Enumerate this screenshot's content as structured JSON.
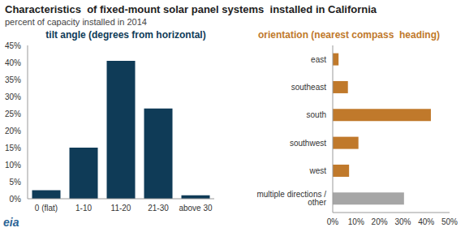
{
  "title": "Characteristics  of fixed-mount solar panel systems  installed in California",
  "subtitle": "percent of capacity installed in 2014",
  "logo": "eia",
  "chart_data": [
    {
      "type": "bar",
      "title": "tilt angle (degrees from horizontal)",
      "categories": [
        "0 (flat)",
        "1-10",
        "11-20",
        "21-30",
        "above 30"
      ],
      "values": [
        2.5,
        15,
        40.5,
        26.5,
        1
      ],
      "color": "#0f3b57",
      "ylim": [
        0,
        45
      ],
      "yticks": [
        {
          "value": 0,
          "label": "0%"
        },
        {
          "value": 5,
          "label": "5%"
        },
        {
          "value": 10,
          "label": "10%"
        },
        {
          "value": 15,
          "label": "15%"
        },
        {
          "value": 20,
          "label": "20%"
        },
        {
          "value": 25,
          "label": "25%"
        },
        {
          "value": 30,
          "label": "30%"
        },
        {
          "value": 35,
          "label": "35%"
        },
        {
          "value": 40,
          "label": "40%"
        },
        {
          "value": 45,
          "label": "45%"
        }
      ],
      "grid": false
    },
    {
      "type": "bar",
      "title": "orientation (nearest compass  heading)",
      "orientation": "horizontal",
      "categories": [
        "east",
        "southeast",
        "south",
        "southwest",
        "west",
        "multiple directions / other"
      ],
      "values": [
        2.5,
        6.5,
        42,
        11,
        7,
        30.5
      ],
      "colors": [
        "#c0792b",
        "#c0792b",
        "#c0792b",
        "#c0792b",
        "#c0792b",
        "#a6a6a6"
      ],
      "xlim": [
        0,
        50
      ],
      "xticks": [
        {
          "value": 0,
          "label": "0%"
        },
        {
          "value": 10,
          "label": "10%"
        },
        {
          "value": 20,
          "label": "20%"
        },
        {
          "value": 30,
          "label": "30%"
        },
        {
          "value": 40,
          "label": "40%"
        },
        {
          "value": 50,
          "label": "50%"
        }
      ],
      "grid": false
    }
  ]
}
